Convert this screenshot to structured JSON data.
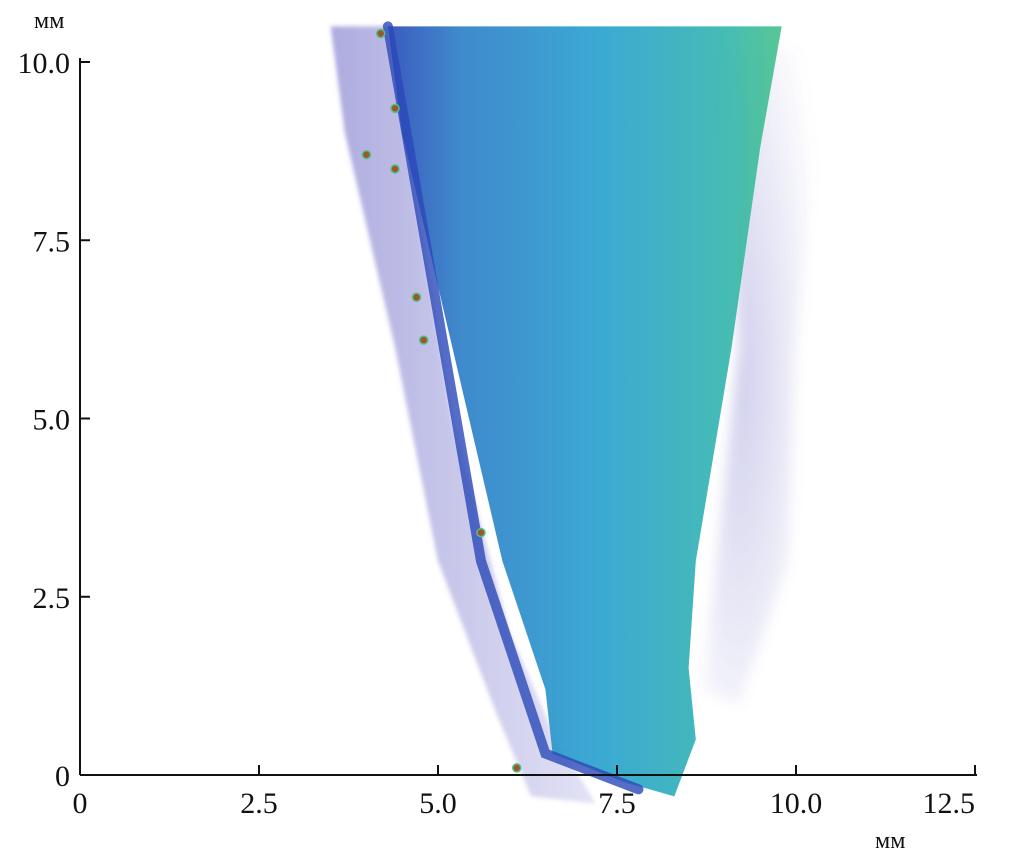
{
  "chart_data": {
    "type": "heatmap",
    "description_kind": "3D volume rendering projected onto a 2D plane",
    "x_unit": "мм",
    "y_unit": "мм",
    "xlim": [
      0,
      12.5
    ],
    "ylim": [
      0,
      10.0
    ],
    "x_ticks": [
      "0",
      "2.5",
      "5.0",
      "7.5",
      "10.0",
      "12.5"
    ],
    "y_ticks": [
      "0",
      "2.5",
      "5.0",
      "7.5",
      "10.0"
    ],
    "grid": false,
    "colors": {
      "halo": "#6a66c4",
      "edge": "#2a48b8",
      "body": "#2a9fce",
      "highlight": "#4cc38a",
      "inclusion": "#a0552a"
    },
    "regions": {
      "outer_halo_outline": [
        [
          3.5,
          10.5
        ],
        [
          4.3,
          10.5
        ],
        [
          5.2,
          5.0
        ],
        [
          6.0,
          2.0
        ],
        [
          6.6,
          0.6
        ],
        [
          7.2,
          -0.4
        ],
        [
          6.3,
          -0.3
        ],
        [
          5.8,
          0.9
        ],
        [
          5.0,
          3.0
        ],
        [
          4.4,
          6.0
        ],
        [
          3.7,
          9.0
        ]
      ],
      "main_body_outline": [
        [
          4.3,
          10.5
        ],
        [
          9.8,
          10.5
        ],
        [
          9.5,
          8.8
        ],
        [
          9.1,
          6.0
        ],
        [
          8.6,
          3.0
        ],
        [
          8.5,
          1.5
        ],
        [
          8.6,
          0.5
        ],
        [
          8.3,
          -0.3
        ],
        [
          7.6,
          -0.1
        ],
        [
          6.6,
          0.3
        ],
        [
          6.5,
          1.2
        ],
        [
          5.9,
          3.0
        ],
        [
          5.2,
          6.0
        ],
        [
          4.5,
          9.0
        ]
      ],
      "right_haze_outline": [
        [
          9.0,
          10.0
        ],
        [
          10.4,
          10.3
        ],
        [
          10.0,
          6.0
        ],
        [
          9.9,
          3.0
        ],
        [
          9.2,
          1.0
        ],
        [
          8.7,
          1.2
        ],
        [
          9.2,
          6.0
        ]
      ],
      "edge_band": [
        [
          4.3,
          10.5
        ],
        [
          5.6,
          3.0
        ],
        [
          6.5,
          0.3
        ],
        [
          7.8,
          -0.2
        ]
      ]
    },
    "inclusions": [
      [
        4.4,
        9.35
      ],
      [
        4.0,
        8.7
      ],
      [
        4.4,
        8.5
      ],
      [
        4.7,
        6.7
      ],
      [
        4.8,
        6.1
      ],
      [
        5.6,
        3.4
      ],
      [
        6.1,
        0.1
      ],
      [
        4.2,
        10.4
      ]
    ]
  }
}
